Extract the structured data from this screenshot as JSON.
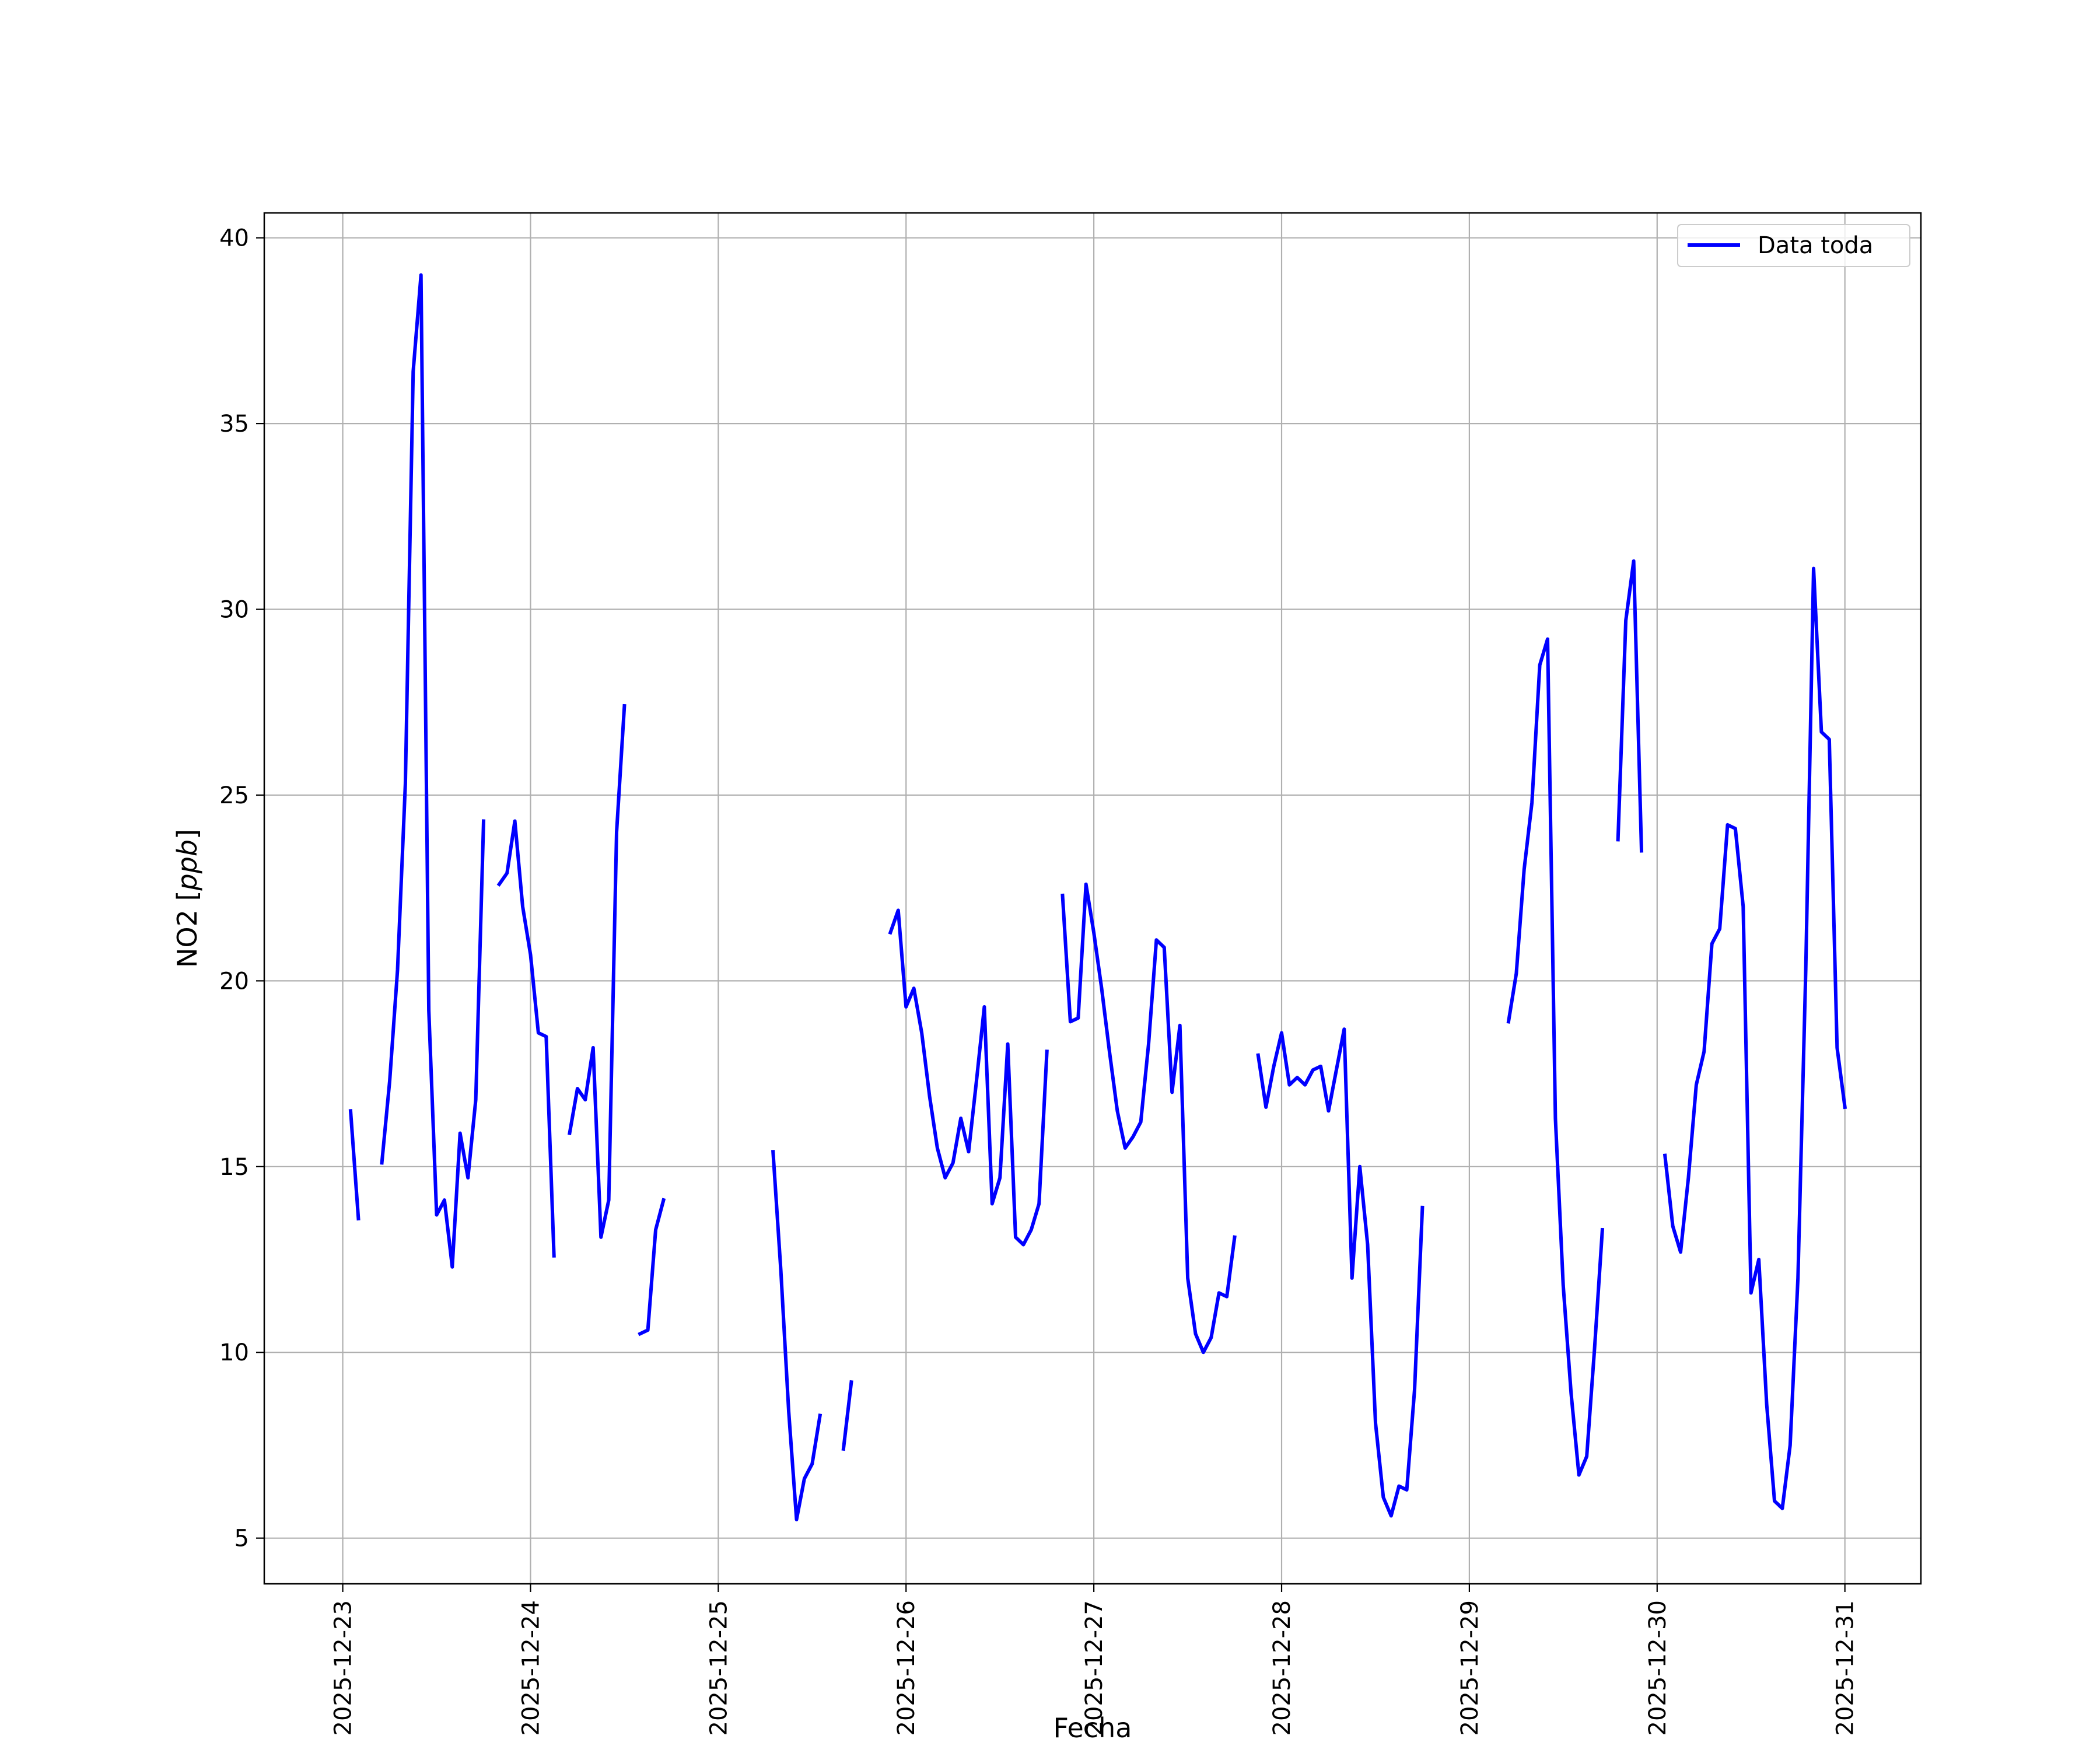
{
  "chart_data": {
    "type": "line",
    "title": "",
    "xlabel": "Fecha",
    "ylabel": "NO2 [ppb]",
    "ylabel_parts": {
      "prefix": "NO2 [",
      "unit": "ppb",
      "suffix": "]"
    },
    "x_type": "date",
    "xlim": [
      "2025-12-22 13:58",
      "2025-12-31 09:43"
    ],
    "ylim": [
      3.77,
      40.67
    ],
    "x_ticks": [
      "2025-12-23",
      "2025-12-24",
      "2025-12-25",
      "2025-12-26",
      "2025-12-27",
      "2025-12-28",
      "2025-12-29",
      "2025-12-30",
      "2025-12-31"
    ],
    "y_ticks": [
      "5",
      "10",
      "15",
      "20",
      "25",
      "30",
      "35",
      "40"
    ],
    "grid": true,
    "legend": {
      "position": "upper right",
      "entries": [
        "Data toda"
      ]
    },
    "colors": {
      "series": "#0000ff",
      "grid": "#b0b0b0",
      "axes": "#000000"
    },
    "series": [
      {
        "name": "Data toda",
        "segments": [
          [
            [
              "2025-12-23 01:00",
              16.5
            ],
            [
              "2025-12-23 02:00",
              13.6
            ]
          ],
          [
            [
              "2025-12-23 05:00",
              15.1
            ],
            [
              "2025-12-23 06:00",
              17.3
            ],
            [
              "2025-12-23 07:00",
              20.3
            ],
            [
              "2025-12-23 08:00",
              25.3
            ],
            [
              "2025-12-23 09:00",
              36.4
            ],
            [
              "2025-12-23 10:00",
              39.0
            ],
            [
              "2025-12-23 11:00",
              19.2
            ],
            [
              "2025-12-23 12:00",
              13.7
            ],
            [
              "2025-12-23 13:00",
              14.1
            ],
            [
              "2025-12-23 14:00",
              12.3
            ],
            [
              "2025-12-23 15:00",
              15.9
            ],
            [
              "2025-12-23 16:00",
              14.7
            ],
            [
              "2025-12-23 17:00",
              16.8
            ],
            [
              "2025-12-23 18:00",
              24.3
            ]
          ],
          [
            [
              "2025-12-23 20:00",
              22.6
            ],
            [
              "2025-12-23 21:00",
              22.9
            ],
            [
              "2025-12-23 22:00",
              24.3
            ],
            [
              "2025-12-23 23:00",
              22.0
            ],
            [
              "2025-12-24 00:00",
              20.7
            ],
            [
              "2025-12-24 01:00",
              18.6
            ],
            [
              "2025-12-24 02:00",
              18.5
            ],
            [
              "2025-12-24 03:00",
              12.6
            ]
          ],
          [
            [
              "2025-12-24 05:00",
              15.9
            ],
            [
              "2025-12-24 06:00",
              17.1
            ],
            [
              "2025-12-24 07:00",
              16.8
            ],
            [
              "2025-12-24 08:00",
              18.2
            ],
            [
              "2025-12-24 09:00",
              13.1
            ],
            [
              "2025-12-24 10:00",
              14.1
            ],
            [
              "2025-12-24 11:00",
              24.0
            ],
            [
              "2025-12-24 12:00",
              27.4
            ]
          ],
          [
            [
              "2025-12-24 14:00",
              10.5
            ],
            [
              "2025-12-24 15:00",
              10.6
            ],
            [
              "2025-12-24 16:00",
              13.3
            ],
            [
              "2025-12-24 17:00",
              14.1
            ]
          ],
          [
            [
              "2025-12-25 07:00",
              15.4
            ],
            [
              "2025-12-25 08:00",
              12.2
            ],
            [
              "2025-12-25 09:00",
              8.4
            ],
            [
              "2025-12-25 10:00",
              5.5
            ],
            [
              "2025-12-25 11:00",
              6.6
            ],
            [
              "2025-12-25 12:00",
              7.0
            ],
            [
              "2025-12-25 13:00",
              8.3
            ]
          ],
          [
            [
              "2025-12-25 16:00",
              7.4
            ],
            [
              "2025-12-25 17:00",
              9.2
            ]
          ],
          [
            [
              "2025-12-25 22:00",
              21.3
            ],
            [
              "2025-12-25 23:00",
              21.9
            ],
            [
              "2025-12-26 00:00",
              19.3
            ],
            [
              "2025-12-26 01:00",
              19.8
            ],
            [
              "2025-12-26 02:00",
              18.6
            ],
            [
              "2025-12-26 03:00",
              16.9
            ],
            [
              "2025-12-26 04:00",
              15.5
            ],
            [
              "2025-12-26 05:00",
              14.7
            ],
            [
              "2025-12-26 06:00",
              15.1
            ],
            [
              "2025-12-26 07:00",
              16.3
            ],
            [
              "2025-12-26 08:00",
              15.4
            ],
            [
              "2025-12-26 09:00",
              17.3
            ],
            [
              "2025-12-26 10:00",
              19.3
            ],
            [
              "2025-12-26 11:00",
              14.0
            ],
            [
              "2025-12-26 12:00",
              14.7
            ],
            [
              "2025-12-26 13:00",
              18.3
            ],
            [
              "2025-12-26 14:00",
              13.1
            ],
            [
              "2025-12-26 15:00",
              12.9
            ],
            [
              "2025-12-26 16:00",
              13.3
            ],
            [
              "2025-12-26 17:00",
              14.0
            ],
            [
              "2025-12-26 18:00",
              18.1
            ]
          ],
          [
            [
              "2025-12-26 20:00",
              22.3
            ],
            [
              "2025-12-26 21:00",
              18.9
            ],
            [
              "2025-12-26 22:00",
              19.0
            ],
            [
              "2025-12-26 23:00",
              22.6
            ],
            [
              "2025-12-27 00:00",
              21.3
            ],
            [
              "2025-12-27 01:00",
              19.8
            ],
            [
              "2025-12-27 02:00",
              18.1
            ],
            [
              "2025-12-27 03:00",
              16.5
            ],
            [
              "2025-12-27 04:00",
              15.5
            ],
            [
              "2025-12-27 05:00",
              15.8
            ],
            [
              "2025-12-27 06:00",
              16.2
            ],
            [
              "2025-12-27 07:00",
              18.3
            ],
            [
              "2025-12-27 08:00",
              21.1
            ],
            [
              "2025-12-27 09:00",
              20.9
            ],
            [
              "2025-12-27 10:00",
              17.0
            ],
            [
              "2025-12-27 11:00",
              18.8
            ],
            [
              "2025-12-27 12:00",
              12.0
            ],
            [
              "2025-12-27 13:00",
              10.5
            ],
            [
              "2025-12-27 14:00",
              10.0
            ],
            [
              "2025-12-27 15:00",
              10.4
            ],
            [
              "2025-12-27 16:00",
              11.6
            ],
            [
              "2025-12-27 17:00",
              11.5
            ],
            [
              "2025-12-27 18:00",
              13.1
            ]
          ],
          [
            [
              "2025-12-27 21:00",
              18.0
            ],
            [
              "2025-12-27 22:00",
              16.6
            ],
            [
              "2025-12-27 23:00",
              17.7
            ],
            [
              "2025-12-28 00:00",
              18.6
            ],
            [
              "2025-12-28 01:00",
              17.2
            ],
            [
              "2025-12-28 02:00",
              17.4
            ],
            [
              "2025-12-28 03:00",
              17.2
            ],
            [
              "2025-12-28 04:00",
              17.6
            ],
            [
              "2025-12-28 05:00",
              17.7
            ],
            [
              "2025-12-28 06:00",
              16.5
            ],
            [
              "2025-12-28 07:00",
              17.6
            ],
            [
              "2025-12-28 08:00",
              18.7
            ],
            [
              "2025-12-28 09:00",
              12.0
            ],
            [
              "2025-12-28 10:00",
              15.0
            ],
            [
              "2025-12-28 11:00",
              12.9
            ],
            [
              "2025-12-28 12:00",
              8.1
            ],
            [
              "2025-12-28 13:00",
              6.1
            ],
            [
              "2025-12-28 14:00",
              5.6
            ],
            [
              "2025-12-28 15:00",
              6.4
            ],
            [
              "2025-12-28 16:00",
              6.3
            ],
            [
              "2025-12-28 17:00",
              9.0
            ],
            [
              "2025-12-28 18:00",
              13.9
            ]
          ],
          [
            [
              "2025-12-29 05:00",
              18.9
            ],
            [
              "2025-12-29 06:00",
              20.2
            ],
            [
              "2025-12-29 07:00",
              23.0
            ],
            [
              "2025-12-29 08:00",
              24.8
            ],
            [
              "2025-12-29 09:00",
              28.5
            ],
            [
              "2025-12-29 10:00",
              29.2
            ],
            [
              "2025-12-29 11:00",
              16.3
            ],
            [
              "2025-12-29 12:00",
              11.8
            ],
            [
              "2025-12-29 13:00",
              8.9
            ],
            [
              "2025-12-29 14:00",
              6.7
            ],
            [
              "2025-12-29 15:00",
              7.2
            ],
            [
              "2025-12-29 16:00",
              10.1
            ],
            [
              "2025-12-29 17:00",
              13.3
            ]
          ],
          [
            [
              "2025-12-29 19:00",
              23.8
            ],
            [
              "2025-12-29 20:00",
              29.7
            ],
            [
              "2025-12-29 21:00",
              31.3
            ],
            [
              "2025-12-29 22:00",
              23.5
            ]
          ],
          [
            [
              "2025-12-30 01:00",
              15.3
            ],
            [
              "2025-12-30 02:00",
              13.4
            ],
            [
              "2025-12-30 03:00",
              12.7
            ],
            [
              "2025-12-30 04:00",
              14.7
            ],
            [
              "2025-12-30 05:00",
              17.2
            ],
            [
              "2025-12-30 06:00",
              18.1
            ],
            [
              "2025-12-30 07:00",
              21.0
            ],
            [
              "2025-12-30 08:00",
              21.4
            ],
            [
              "2025-12-30 09:00",
              24.2
            ],
            [
              "2025-12-30 10:00",
              24.1
            ],
            [
              "2025-12-30 11:00",
              22.0
            ],
            [
              "2025-12-30 12:00",
              11.6
            ],
            [
              "2025-12-30 13:00",
              12.5
            ],
            [
              "2025-12-30 14:00",
              8.6
            ],
            [
              "2025-12-30 15:00",
              6.0
            ],
            [
              "2025-12-30 16:00",
              5.8
            ],
            [
              "2025-12-30 17:00",
              7.5
            ],
            [
              "2025-12-30 18:00",
              12.0
            ],
            [
              "2025-12-30 19:00",
              20.3
            ],
            [
              "2025-12-30 20:00",
              31.1
            ],
            [
              "2025-12-30 21:00",
              26.7
            ],
            [
              "2025-12-30 22:00",
              26.5
            ],
            [
              "2025-12-30 23:00",
              18.2
            ],
            [
              "2025-12-31 00:00",
              16.6
            ]
          ]
        ]
      }
    ]
  }
}
